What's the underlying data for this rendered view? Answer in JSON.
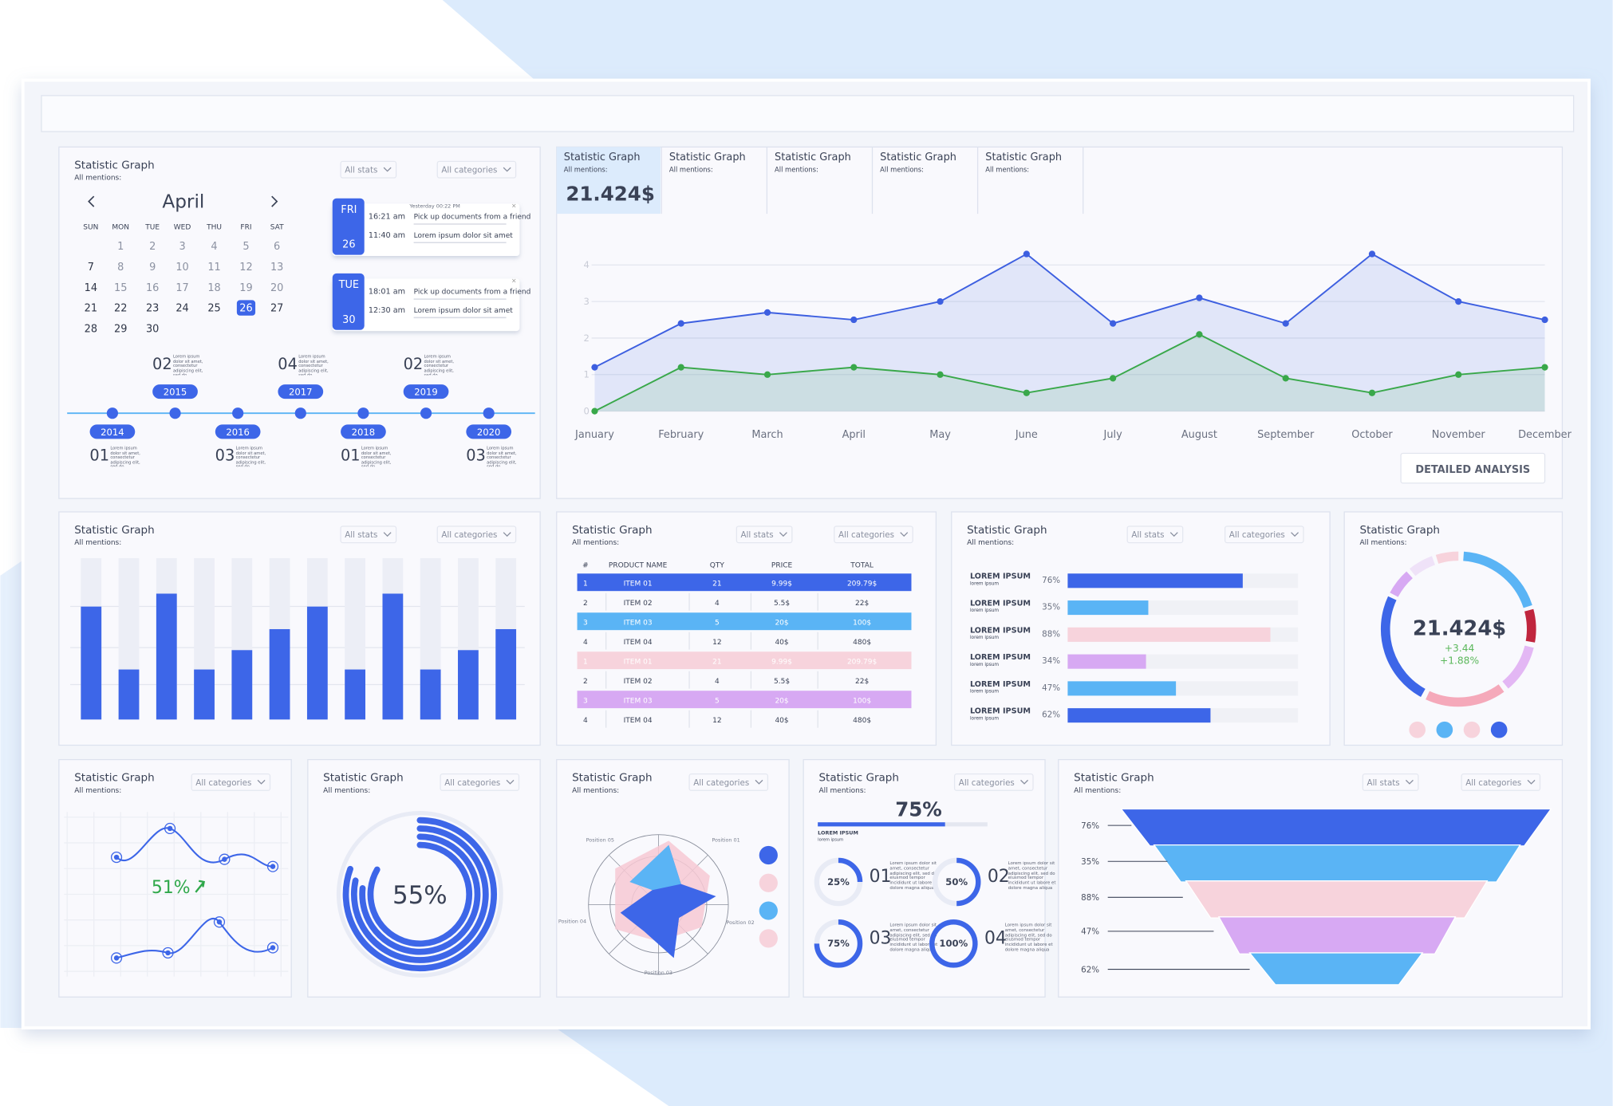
{
  "calendar": {
    "title": "Statistic Graph",
    "subtitle": "All mentions:",
    "filters": [
      "All stats",
      "All categories"
    ],
    "month": "April",
    "weekdays": [
      "SUN",
      "MON",
      "TUE",
      "WED",
      "THU",
      "FRI",
      "SAT"
    ],
    "weeks": [
      [
        null,
        1,
        2,
        3,
        4,
        5,
        6
      ],
      [
        7,
        8,
        9,
        10,
        11,
        12,
        13
      ],
      [
        14,
        15,
        16,
        17,
        18,
        19,
        20
      ],
      [
        21,
        22,
        23,
        24,
        25,
        26,
        27
      ],
      [
        28,
        29,
        30,
        null,
        null,
        null,
        null
      ]
    ],
    "selected_day": 26,
    "events": [
      {
        "weekday": "FRI",
        "day": 26,
        "note": "Yesterday 00:22 PM",
        "items": [
          {
            "time": "16:21 am",
            "text": "Pick up documents from a friend"
          },
          {
            "time": "11:40 am",
            "text": "Lorem ipsum dolor sit amet"
          }
        ]
      },
      {
        "weekday": "TUE",
        "day": 30,
        "items": [
          {
            "time": "18:01 am",
            "text": "Pick up documents from a friend"
          },
          {
            "time": "12:30 am",
            "text": "Lorem ipsum dolor sit amet"
          }
        ]
      }
    ],
    "timeline": [
      {
        "year": "2014",
        "count": "01"
      },
      {
        "year": "2015",
        "count": "02"
      },
      {
        "year": "2016",
        "count": "03"
      },
      {
        "year": "2017",
        "count": "04"
      },
      {
        "year": "2018",
        "count": "01"
      },
      {
        "year": "2019",
        "count": "02"
      },
      {
        "year": "2020",
        "count": "03"
      }
    ],
    "lorem": "Lorem ipsum dolor sit amet, consectetur adipiscing elit, sed do"
  },
  "line_panel": {
    "tabs": [
      {
        "title": "Statistic Graph",
        "subtitle": "All mentions:",
        "value": "21.424$"
      },
      {
        "title": "Statistic Graph",
        "subtitle": "All mentions:"
      },
      {
        "title": "Statistic Graph",
        "subtitle": "All mentions:"
      },
      {
        "title": "Statistic Graph",
        "subtitle": "All mentions:"
      },
      {
        "title": "Statistic Graph",
        "subtitle": "All mentions:"
      }
    ],
    "chart": {
      "type": "line",
      "categories": [
        "January",
        "February",
        "March",
        "April",
        "May",
        "June",
        "July",
        "August",
        "September",
        "October",
        "November",
        "December"
      ],
      "series": [
        {
          "color": "#3d5fe0",
          "values": [
            1.2,
            2.4,
            2.7,
            2.5,
            3.0,
            4.3,
            2.4,
            3.1,
            2.4,
            4.3,
            3.0,
            2.5
          ]
        },
        {
          "color": "#39a84a",
          "values": [
            0,
            1.2,
            1.0,
            1.2,
            1.0,
            0.5,
            0.9,
            2.1,
            0.9,
            0.5,
            1.0,
            1.2
          ]
        }
      ],
      "ylim": [
        0,
        4.5
      ],
      "yticks": [
        0,
        1,
        2,
        3,
        4
      ],
      "grid": true
    },
    "button": "DETAILED ANALYSIS"
  },
  "bars": {
    "title": "Statistic Graph",
    "subtitle": "All mentions:",
    "filters": [
      "All stats",
      "All categories"
    ],
    "chart": {
      "type": "bar",
      "values": [
        70,
        31,
        78,
        31,
        43,
        56,
        70,
        31,
        78,
        31,
        43,
        56
      ],
      "ylim": [
        0,
        100
      ],
      "color": "#3d66e8",
      "track_color": "#eceef6"
    }
  },
  "table": {
    "title": "Statistic Graph",
    "subtitle": "All mentions:",
    "filters": [
      "All stats",
      "All categories"
    ],
    "header": [
      "#",
      "PRODUCT NAME",
      "QTY",
      "PRICE",
      "TOTAL"
    ],
    "rows": [
      [
        "1",
        "ITEM 01",
        "21",
        "9.99$",
        "209.79$"
      ],
      [
        "2",
        "ITEM 02",
        "4",
        "5.5$",
        "22$"
      ],
      [
        "3",
        "ITEM 03",
        "5",
        "20$",
        "100$"
      ],
      [
        "4",
        "ITEM 04",
        "12",
        "40$",
        "480$"
      ],
      [
        "1",
        "ITEM 01",
        "21",
        "9.99$",
        "209.79$"
      ],
      [
        "2",
        "ITEM 02",
        "4",
        "5.5$",
        "22$"
      ],
      [
        "3",
        "ITEM 03",
        "5",
        "20$",
        "100$"
      ],
      [
        "4",
        "ITEM 04",
        "12",
        "40$",
        "480$"
      ]
    ],
    "row_colors": [
      "#3d66e8",
      null,
      "#5ab4f5",
      null,
      "#f7d3dc",
      null,
      "#d7a9f3",
      null
    ]
  },
  "progress": {
    "title": "Statistic Graph",
    "subtitle": "All mentions:",
    "filters": [
      "All stats",
      "All categories"
    ],
    "max": 100,
    "items": [
      {
        "label": "LOREM IPSUM",
        "sublabel": "lorem ipsum",
        "value": 76,
        "value_label": "76%",
        "color": "#3d66e8"
      },
      {
        "label": "LOREM IPSUM",
        "sublabel": "lorem ipsum",
        "value": 35,
        "value_label": "35%",
        "color": "#5ab4f5"
      },
      {
        "label": "LOREM IPSUM",
        "sublabel": "lorem ipsum",
        "value": 88,
        "value_label": "88%",
        "color": "#f7d3dc"
      },
      {
        "label": "LOREM IPSUM",
        "sublabel": "lorem ipsum",
        "value": 34,
        "value_label": "34%",
        "color": "#d7a9f3"
      },
      {
        "label": "LOREM IPSUM",
        "sublabel": "lorem ipsum",
        "value": 47,
        "value_label": "47%",
        "color": "#5ab4f5"
      },
      {
        "label": "LOREM IPSUM",
        "sublabel": "lorem ipsum",
        "value": 62,
        "value_label": "62%",
        "color": "#3d66e8"
      }
    ]
  },
  "donut": {
    "title": "Statistic Graph",
    "subtitle": "All mentions:",
    "value": "21.424$",
    "change": "+3.44",
    "change_pct": "+1.88%",
    "legend_colors": [
      "#f7d3dc",
      "#5ab4f5",
      "#f7d3dc",
      "#3d66e8"
    ]
  },
  "wave": {
    "title": "Statistic Graph",
    "subtitle": "All mentions:",
    "filters": [
      "All categories"
    ],
    "value_label": "51%"
  },
  "ring": {
    "title": "Statistic Graph",
    "subtitle": "All mentions:",
    "filters": [
      "All categories"
    ],
    "value_label": "55%"
  },
  "radar": {
    "title": "Statistic Graph",
    "subtitle": "All mentions:",
    "filters": [
      "All categories"
    ],
    "axes": [
      "Position 01",
      "Position 02",
      "Position 03",
      "Position 04",
      "Position 05"
    ],
    "legend_colors": [
      "#3d66e8",
      "#f7d3dc",
      "#5ab4f5",
      "#f7d3dc"
    ]
  },
  "rings": {
    "title": "Statistic Graph",
    "subtitle": "All mentions:",
    "filters": [
      "All categories"
    ],
    "header_value": 75,
    "header_label": "75%",
    "header_caption": "LOREM IPSUM",
    "header_sub": "lorem ipsum",
    "items": [
      {
        "index": "01",
        "value": 25,
        "label": "25%"
      },
      {
        "index": "02",
        "value": 50,
        "label": "50%"
      },
      {
        "index": "03",
        "value": 75,
        "label": "75%"
      },
      {
        "index": "04",
        "value": 100,
        "label": "100%"
      }
    ],
    "lorem": "Lorem ipsum dolor sit amet, consectetur adipiscing elit, sed do eiusmod tempor incididunt ut labore et dolore magna aliqua"
  },
  "funnel": {
    "title": "Statistic Graph",
    "subtitle": "All mentions:",
    "filters": [
      "All stats",
      "All categories"
    ],
    "labels": [
      "76%",
      "35%",
      "88%",
      "47%",
      "62%"
    ],
    "colors": [
      "#3d66e8",
      "#5ab4f5",
      "#f7d3dc",
      "#d7a9f3",
      "#5ab4f5"
    ]
  }
}
